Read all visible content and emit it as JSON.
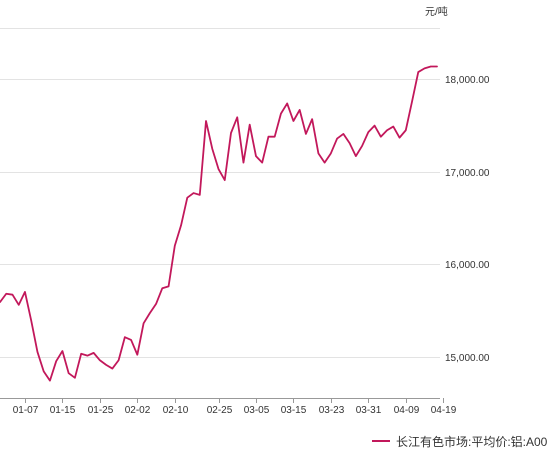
{
  "chart_data": {
    "type": "line",
    "unit_label": "元/吨",
    "ylim": [
      14400,
      18600
    ],
    "y_ticks": [
      {
        "value": 15000,
        "label": "15,000.00"
      },
      {
        "value": 16000,
        "label": "16,000.00"
      },
      {
        "value": 17000,
        "label": "17,000.00"
      },
      {
        "value": 18000,
        "label": "18,000.00"
      }
    ],
    "x_ticks": [
      {
        "index": 4,
        "label": "01-07"
      },
      {
        "index": 10,
        "label": "01-15"
      },
      {
        "index": 16,
        "label": "01-25"
      },
      {
        "index": 22,
        "label": "02-02"
      },
      {
        "index": 28,
        "label": "02-10"
      },
      {
        "index": 35,
        "label": "02-25"
      },
      {
        "index": 41,
        "label": "03-05"
      },
      {
        "index": 47,
        "label": "03-15"
      },
      {
        "index": 53,
        "label": "03-23"
      },
      {
        "index": 59,
        "label": "03-31"
      },
      {
        "index": 65,
        "label": "04-09"
      },
      {
        "index": 71,
        "label": "04-19"
      }
    ],
    "grid": "horizontal",
    "legend_position": "bottom-right",
    "series": [
      {
        "name": "长江有色市场:平均价:铝:A00",
        "color": "#c2185b",
        "values": [
          15590,
          15680,
          15670,
          15560,
          15700,
          15390,
          15050,
          14840,
          14740,
          14950,
          15060,
          14820,
          14770,
          15030,
          15010,
          15040,
          14960,
          14910,
          14870,
          14960,
          15210,
          15180,
          15020,
          15360,
          15470,
          15570,
          15740,
          15760,
          16200,
          16420,
          16720,
          16770,
          16750,
          17550,
          17250,
          17030,
          16910,
          17420,
          17590,
          17100,
          17510,
          17170,
          17100,
          17380,
          17380,
          17630,
          17740,
          17550,
          17670,
          17410,
          17570,
          17200,
          17100,
          17200,
          17360,
          17410,
          17310,
          17170,
          17280,
          17430,
          17500,
          17380,
          17450,
          17490,
          17370,
          17450,
          17760,
          18080,
          18120,
          18140,
          18140
        ]
      }
    ]
  }
}
